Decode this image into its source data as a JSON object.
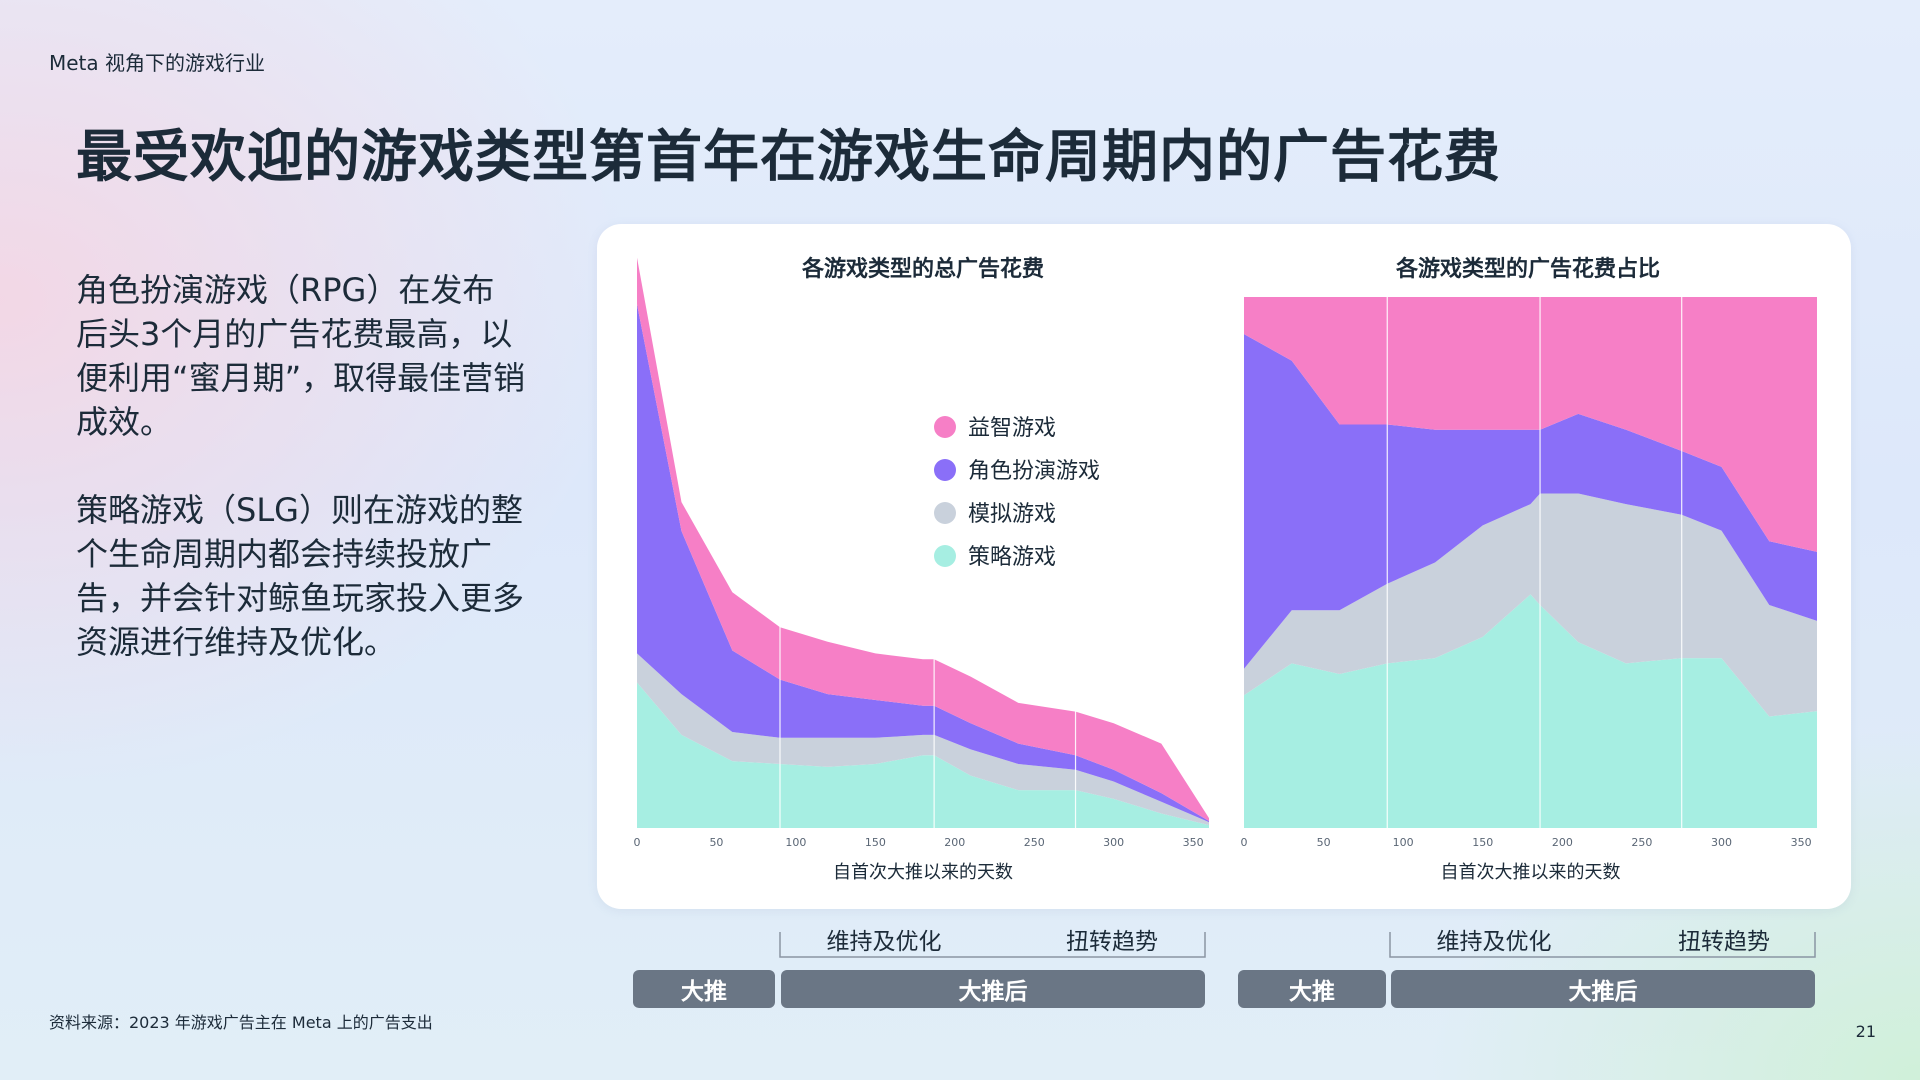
{
  "header": {
    "kicker": "Meta 视角下的游戏行业",
    "title": "最受欢迎的游戏类型第首年在游戏生命周期内的广告花费"
  },
  "body": {
    "paragraphs": [
      "角色扮演游戏（RPG）在发布后头3个月的广告花费最高，以便利用“蜜月期”，取得最佳营销成效。",
      "策略游戏（SLG）则在游戏的整个生命周期内都会持续投放广告，并会针对鲸鱼玩家投入更多资源进行维持及优化。"
    ]
  },
  "footer": {
    "source": "资料来源：2023 年游戏广告主在 Meta 上的广告支出",
    "page_number": "21"
  },
  "colors": {
    "puzzle": "#f67fc6",
    "rpg": "#8a6ff8",
    "simulation": "#c9d1dc",
    "strategy": "#a6eee2",
    "phase_box": "#6a7685"
  },
  "legend": [
    {
      "key": "puzzle",
      "label": "益智游戏"
    },
    {
      "key": "rpg",
      "label": "角色扮演游戏"
    },
    {
      "key": "simulation",
      "label": "模拟游戏"
    },
    {
      "key": "strategy",
      "label": "策略游戏"
    }
  ],
  "phases": {
    "bracket_left": "维持及优化",
    "bracket_right": "扭转趋势",
    "box_push": "大推",
    "box_after": "大推后"
  },
  "chart_data": [
    {
      "type": "area",
      "stacked": true,
      "title": "各游戏类型的总广告花费",
      "xlabel": "自首次大推以来的天数",
      "ylabel": "",
      "xlim": [
        0,
        360
      ],
      "ylim": [
        0,
        100
      ],
      "x_ticks": [
        0,
        50,
        100,
        150,
        200,
        250,
        300,
        350
      ],
      "vertical_lines": [
        90,
        187,
        276
      ],
      "x": [
        0,
        28,
        60,
        90,
        120,
        150,
        180,
        187,
        210,
        240,
        276,
        300,
        330,
        360
      ],
      "series": [
        {
          "key": "strategy",
          "name": "策略游戏",
          "values": [
            25,
            16,
            11.5,
            11,
            10.5,
            11,
            12.5,
            12.5,
            9,
            6.5,
            6.5,
            5,
            2.5,
            0.5
          ]
        },
        {
          "key": "simulation",
          "name": "模拟游戏",
          "values": [
            5,
            7,
            5,
            4.5,
            5,
            4.5,
            3.5,
            3.5,
            4.5,
            4.5,
            3.5,
            3,
            2,
            0.5
          ]
        },
        {
          "key": "rpg",
          "name": "角色扮演游戏",
          "values": [
            60,
            28,
            14,
            10,
            7.5,
            6.5,
            5,
            5,
            4.5,
            3.5,
            2.5,
            2,
            1.5,
            0.2
          ]
        },
        {
          "key": "puzzle",
          "name": "益智游戏",
          "values": [
            8,
            5,
            10,
            9,
            9,
            8,
            8,
            8,
            8,
            7,
            7.5,
            8,
            8.5,
            0.5
          ]
        }
      ]
    },
    {
      "type": "area",
      "stacked": true,
      "normalized": true,
      "title": "各游戏类型的广告花费占比",
      "xlabel": "自首次大推以来的天数",
      "ylabel": "",
      "xlim": [
        0,
        360
      ],
      "ylim": [
        0,
        100
      ],
      "x_ticks": [
        0,
        50,
        100,
        150,
        200,
        250,
        300,
        350
      ],
      "vertical_lines": [
        90,
        186,
        275
      ],
      "x": [
        0,
        30,
        60,
        90,
        120,
        150,
        180,
        186,
        210,
        240,
        275,
        300,
        330,
        360
      ],
      "series": [
        {
          "key": "strategy",
          "name": "策略游戏",
          "values": [
            25,
            31,
            29,
            31,
            32,
            36,
            44,
            42,
            35,
            31,
            32,
            32,
            21,
            22
          ]
        },
        {
          "key": "simulation",
          "name": "模拟游戏",
          "values": [
            5,
            10,
            12,
            15,
            18,
            21,
            17,
            21,
            28,
            30,
            27,
            24,
            21,
            17
          ]
        },
        {
          "key": "rpg",
          "name": "角色扮演游戏",
          "values": [
            63,
            47,
            35,
            30,
            25,
            18,
            14,
            12,
            15,
            14,
            12,
            12,
            12,
            13
          ]
        },
        {
          "key": "puzzle",
          "name": "益智游戏",
          "values": [
            7,
            12,
            24,
            24,
            25,
            25,
            25,
            25,
            22,
            25,
            29,
            32,
            46,
            48
          ]
        }
      ]
    }
  ]
}
